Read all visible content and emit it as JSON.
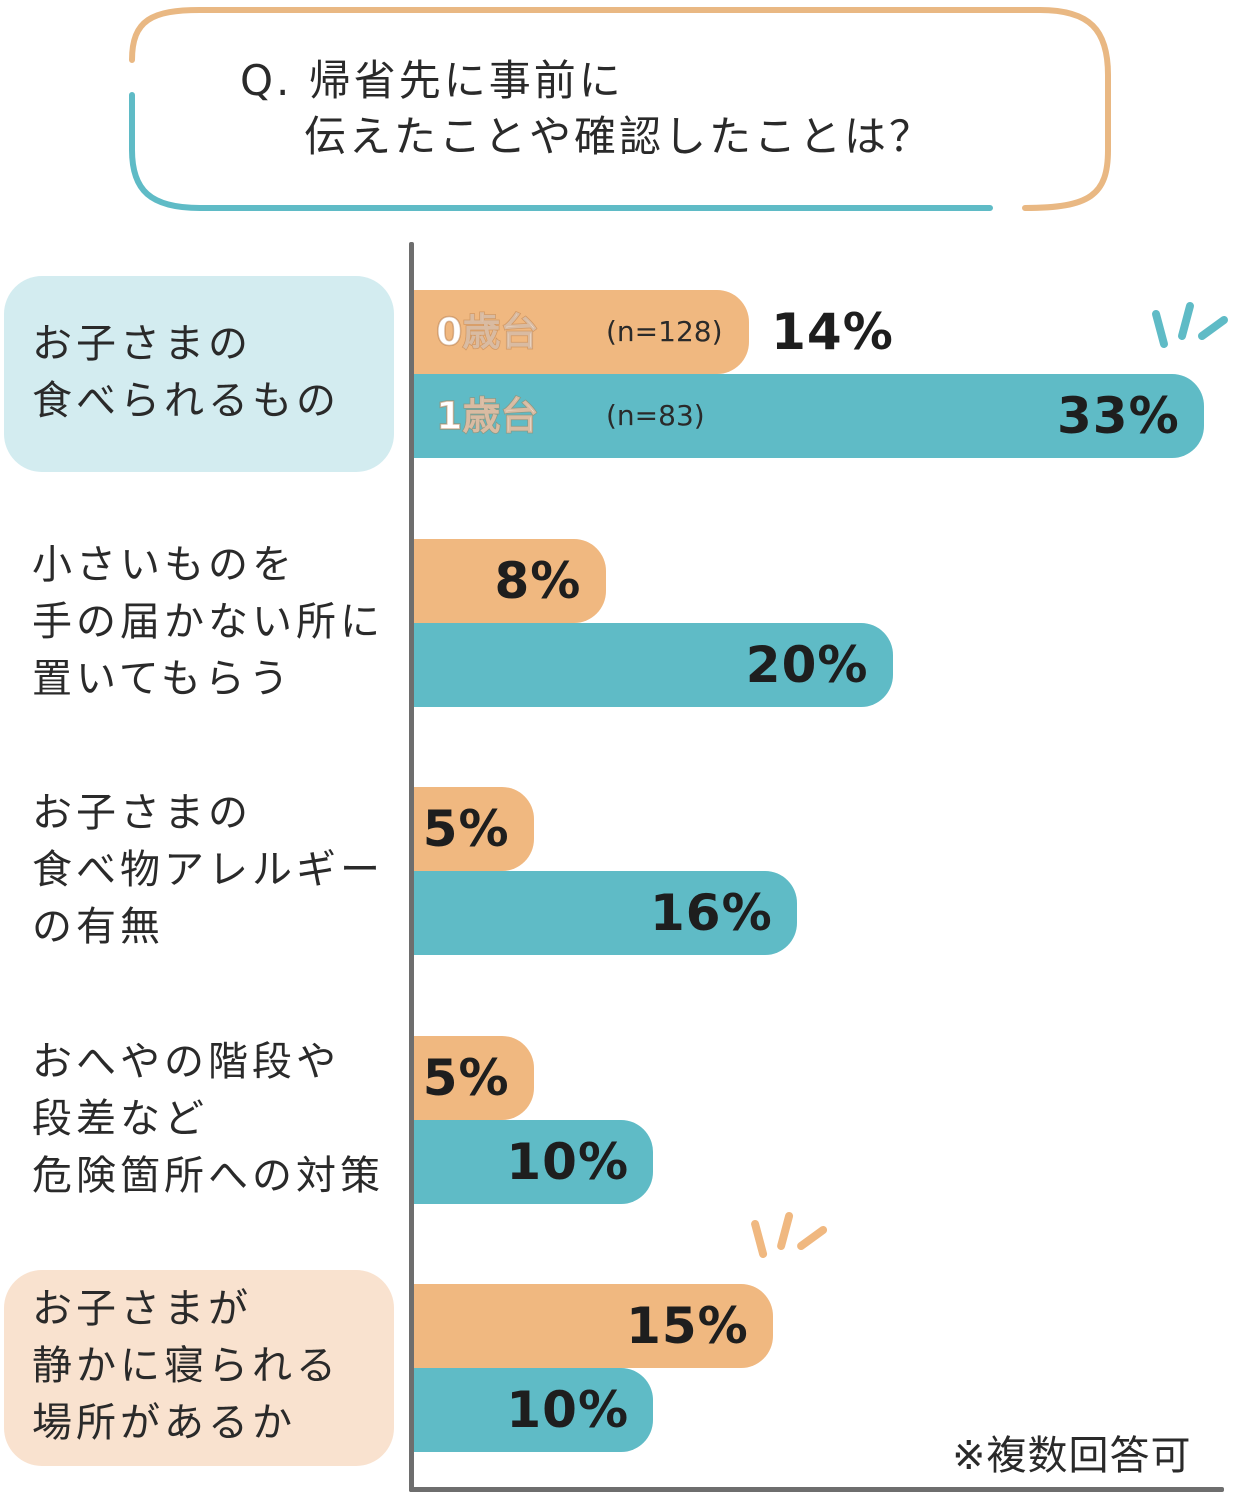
{
  "colors": {
    "series0": "#f0b880",
    "series1": "#5fbbc6",
    "frame_orange": "#e9b883",
    "frame_teal": "#5fbbc6",
    "highlight_blue": "#d3ecf0",
    "highlight_peach": "#f9e2cf"
  },
  "question": {
    "line1": "Q. 帰省先に事前に",
    "line2": "伝えたことや確認したことは？"
  },
  "note": "※複数回答可",
  "chart_data": {
    "type": "bar",
    "orientation": "horizontal",
    "title": "Q. 帰省先に事前に伝えたことや確認したことは？",
    "xlim": [
      0,
      33
    ],
    "grid": false,
    "categories": [
      "お子さまの\n食べられるもの",
      "小さいものを\n手の届かない所に\n置いてもらう",
      "お子さまの\n食べ物アレルギー\nの有無",
      "おへやの階段や\n段差など\n危険箇所への対策",
      "お子さまが\n静かに寝られる\n場所があるか"
    ],
    "highlighted": [
      "blue",
      "none",
      "none",
      "none",
      "peach"
    ],
    "series": [
      {
        "name": "0歳台",
        "n_label": "(n=128)",
        "values": [
          14,
          8,
          5,
          5,
          15
        ],
        "labels": [
          "14%",
          "8%",
          "5%",
          "5%",
          "15%"
        ]
      },
      {
        "name": "1歳台",
        "n_label": "(n=83)",
        "values": [
          33,
          20,
          16,
          10,
          10
        ],
        "labels": [
          "33%",
          "20%",
          "16%",
          "10%",
          "10%"
        ]
      }
    ],
    "sparkle_marks": [
      "33%",
      "15%"
    ]
  }
}
